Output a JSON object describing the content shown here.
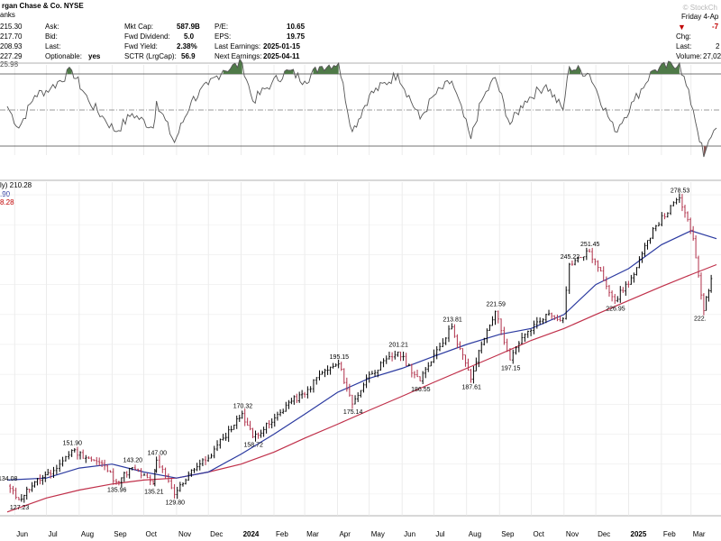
{
  "header": {
    "title": "rgan Chase & Co. NYSE",
    "subtitle": "anks",
    "ask_label": "Ask:",
    "ask_value": "215.30",
    "bid_label": "Bid:",
    "bid_value": "217.70",
    "last_label": "Last:",
    "last_value": "208.93",
    "optionable_label": "Optionable:",
    "optionable_value": "yes",
    "row4_price": "227.29",
    "mktcap_label": "Mkt Cap:",
    "mktcap_value": "587.9B",
    "fwd_div_label": "Fwd Dividend:",
    "fwd_div_value": "5.0",
    "fwd_yield_label": "Fwd Yield:",
    "fwd_yield_value": "2.38%",
    "sctr_label": "SCTR (LrgCap):",
    "sctr_value": "56.9",
    "pe_label": "P/E:",
    "pe_value": "10.65",
    "eps_label": "EPS:",
    "eps_value": "19.75",
    "last_earn_label": "Last Earnings:",
    "last_earn_value": "2025-01-15",
    "next_earn_label": "Next Earnings:",
    "next_earn_value": "2025-04-11",
    "date_text": "Friday 4-Ap",
    "chg_label": "Chg:",
    "chg_value": "-7",
    "last2_label": "Last:",
    "last2_value": "2",
    "volume_label": "Volume:",
    "volume_value": "27,02",
    "watermark": "© StockCh",
    "rsi_value": "25.98"
  },
  "price_legend": {
    "main": "ly) 210.28",
    "ma50": ".90",
    "ma200": "8.28"
  },
  "colors": {
    "price_up": "#000000",
    "price_down": "#b0304a",
    "ma50": "#2b3aa0",
    "ma200": "#c0304a",
    "rsi_fill_over": "#4f7a48",
    "rsi_fill_under": "#8a5a58"
  },
  "chart_data": {
    "type": "line",
    "x_axis_labels": [
      "Jun",
      "Jul",
      "Aug",
      "Sep",
      "Oct",
      "Nov",
      "Dec",
      "2024",
      "Feb",
      "Mar",
      "Apr",
      "May",
      "Jun",
      "Jul",
      "Aug",
      "Sep",
      "Oct",
      "Nov",
      "Dec",
      "2025",
      "Feb",
      "Mar"
    ],
    "ylim": [
      120,
      285
    ],
    "price_annotations": [
      {
        "label": "134.08",
        "value": 134.08,
        "date": "2023-05-25"
      },
      {
        "label": "127.23",
        "value": 127.23,
        "date": "2023-06-05"
      },
      {
        "label": "151.90",
        "value": 151.9,
        "date": "2023-07-25"
      },
      {
        "label": "135.96",
        "value": 135.96,
        "date": "2023-09-05"
      },
      {
        "label": "143.20",
        "value": 143.2,
        "date": "2023-09-20"
      },
      {
        "label": "135.21",
        "value": 135.21,
        "date": "2023-10-10"
      },
      {
        "label": "147.00",
        "value": 147.0,
        "date": "2023-10-13"
      },
      {
        "label": "129.80",
        "value": 129.8,
        "date": "2023-10-30"
      },
      {
        "label": "170.32",
        "value": 170.32,
        "date": "2024-01-02"
      },
      {
        "label": "158.72",
        "value": 158.72,
        "date": "2024-01-12"
      },
      {
        "label": "195.15",
        "value": 195.15,
        "date": "2024-04-02"
      },
      {
        "label": "175.14",
        "value": 175.14,
        "date": "2024-04-15"
      },
      {
        "label": "201.21",
        "value": 201.21,
        "date": "2024-05-28"
      },
      {
        "label": "186.55",
        "value": 186.55,
        "date": "2024-06-18"
      },
      {
        "label": "213.81",
        "value": 213.81,
        "date": "2024-07-18"
      },
      {
        "label": "187.61",
        "value": 187.61,
        "date": "2024-08-05"
      },
      {
        "label": "221.59",
        "value": 221.59,
        "date": "2024-08-28"
      },
      {
        "label": "197.15",
        "value": 197.15,
        "date": "2024-09-11"
      },
      {
        "label": "245.22",
        "value": 245.22,
        "date": "2024-11-06"
      },
      {
        "label": "251.45",
        "value": 251.45,
        "date": "2024-11-25"
      },
      {
        "label": "226.95",
        "value": 226.95,
        "date": "2024-12-19"
      },
      {
        "label": "278.53",
        "value": 278.53,
        "date": "2025-02-18"
      },
      {
        "label": "222.",
        "value": 222.0,
        "date": "2025-03-13"
      }
    ],
    "series": [
      {
        "name": "JPM",
        "values": [
          [
            "2023-05-25",
            134
          ],
          [
            "2023-06-05",
            127.2
          ],
          [
            "2023-06-20",
            136
          ],
          [
            "2023-07-05",
            140
          ],
          [
            "2023-07-25",
            151.9
          ],
          [
            "2023-08-10",
            148
          ],
          [
            "2023-08-25",
            144
          ],
          [
            "2023-09-05",
            136
          ],
          [
            "2023-09-20",
            143.2
          ],
          [
            "2023-10-10",
            135.2
          ],
          [
            "2023-10-13",
            147
          ],
          [
            "2023-10-30",
            129.8
          ],
          [
            "2023-11-15",
            142
          ],
          [
            "2023-12-01",
            148
          ],
          [
            "2023-12-15",
            158
          ],
          [
            "2024-01-02",
            170.3
          ],
          [
            "2024-01-12",
            158.7
          ],
          [
            "2024-01-30",
            166
          ],
          [
            "2024-02-15",
            176
          ],
          [
            "2024-03-01",
            180
          ],
          [
            "2024-03-15",
            190
          ],
          [
            "2024-04-02",
            195.2
          ],
          [
            "2024-04-15",
            175.1
          ],
          [
            "2024-05-01",
            190
          ],
          [
            "2024-05-28",
            201.2
          ],
          [
            "2024-06-18",
            186.6
          ],
          [
            "2024-07-01",
            200
          ],
          [
            "2024-07-18",
            213.8
          ],
          [
            "2024-08-05",
            187.6
          ],
          [
            "2024-08-15",
            205
          ],
          [
            "2024-08-28",
            221.6
          ],
          [
            "2024-09-11",
            197.2
          ],
          [
            "2024-09-25",
            210
          ],
          [
            "2024-10-15",
            220
          ],
          [
            "2024-10-31",
            218
          ],
          [
            "2024-11-06",
            245.2
          ],
          [
            "2024-11-25",
            251.5
          ],
          [
            "2024-12-19",
            227
          ],
          [
            "2025-01-06",
            240
          ],
          [
            "2025-01-24",
            263
          ],
          [
            "2025-02-18",
            278.5
          ],
          [
            "2025-03-03",
            258
          ],
          [
            "2025-03-13",
            222
          ],
          [
            "2025-03-20",
            238
          ]
        ]
      },
      {
        "name": "MA50",
        "values": [
          [
            "2023-05-25",
            137
          ],
          [
            "2023-07-01",
            138
          ],
          [
            "2023-08-01",
            143
          ],
          [
            "2023-09-01",
            145
          ],
          [
            "2023-10-01",
            141
          ],
          [
            "2023-11-01",
            138
          ],
          [
            "2023-12-01",
            141
          ],
          [
            "2024-01-01",
            150
          ],
          [
            "2024-02-01",
            160
          ],
          [
            "2024-03-01",
            170
          ],
          [
            "2024-04-01",
            181
          ],
          [
            "2024-05-01",
            188
          ],
          [
            "2024-06-01",
            193
          ],
          [
            "2024-07-01",
            199
          ],
          [
            "2024-08-01",
            205
          ],
          [
            "2024-09-01",
            210
          ],
          [
            "2024-10-01",
            213
          ],
          [
            "2024-11-01",
            220
          ],
          [
            "2024-12-01",
            235
          ],
          [
            "2025-01-01",
            243
          ],
          [
            "2025-02-01",
            255
          ],
          [
            "2025-03-01",
            262
          ],
          [
            "2025-03-25",
            258
          ]
        ]
      },
      {
        "name": "MA200",
        "values": [
          [
            "2023-05-25",
            121
          ],
          [
            "2023-07-01",
            128
          ],
          [
            "2023-08-01",
            132
          ],
          [
            "2023-09-01",
            135
          ],
          [
            "2023-10-01",
            137
          ],
          [
            "2023-11-01",
            138
          ],
          [
            "2023-12-01",
            141
          ],
          [
            "2024-01-01",
            145
          ],
          [
            "2024-02-01",
            151
          ],
          [
            "2024-03-01",
            158
          ],
          [
            "2024-04-01",
            165
          ],
          [
            "2024-05-01",
            172
          ],
          [
            "2024-06-01",
            179
          ],
          [
            "2024-07-01",
            186
          ],
          [
            "2024-08-01",
            193
          ],
          [
            "2024-09-01",
            200
          ],
          [
            "2024-10-01",
            207
          ],
          [
            "2024-11-01",
            213
          ],
          [
            "2024-12-01",
            220
          ],
          [
            "2025-01-01",
            227
          ],
          [
            "2025-02-01",
            234
          ],
          [
            "2025-03-01",
            240
          ],
          [
            "2025-03-25",
            245
          ]
        ]
      },
      {
        "name": "RSI",
        "values": [
          [
            "2023-05-25",
            52
          ],
          [
            "2023-06-05",
            40
          ],
          [
            "2023-06-20",
            58
          ],
          [
            "2023-07-05",
            62
          ],
          [
            "2023-07-25",
            72
          ],
          [
            "2023-08-10",
            55
          ],
          [
            "2023-08-25",
            45
          ],
          [
            "2023-09-05",
            38
          ],
          [
            "2023-09-20",
            48
          ],
          [
            "2023-10-10",
            40
          ],
          [
            "2023-10-13",
            55
          ],
          [
            "2023-10-30",
            32
          ],
          [
            "2023-11-15",
            55
          ],
          [
            "2023-12-01",
            64
          ],
          [
            "2023-12-15",
            72
          ],
          [
            "2024-01-02",
            76
          ],
          [
            "2024-01-12",
            55
          ],
          [
            "2024-01-30",
            65
          ],
          [
            "2024-02-15",
            72
          ],
          [
            "2024-03-01",
            66
          ],
          [
            "2024-03-15",
            74
          ],
          [
            "2024-04-02",
            76
          ],
          [
            "2024-04-15",
            38
          ],
          [
            "2024-05-01",
            58
          ],
          [
            "2024-05-28",
            70
          ],
          [
            "2024-06-18",
            45
          ],
          [
            "2024-07-01",
            58
          ],
          [
            "2024-07-18",
            66
          ],
          [
            "2024-08-05",
            34
          ],
          [
            "2024-08-15",
            55
          ],
          [
            "2024-08-28",
            68
          ],
          [
            "2024-09-11",
            42
          ],
          [
            "2024-09-25",
            55
          ],
          [
            "2024-10-15",
            64
          ],
          [
            "2024-10-31",
            50
          ],
          [
            "2024-11-06",
            74
          ],
          [
            "2024-11-25",
            70
          ],
          [
            "2024-12-19",
            38
          ],
          [
            "2025-01-06",
            55
          ],
          [
            "2025-01-24",
            72
          ],
          [
            "2025-02-18",
            76
          ],
          [
            "2025-03-03",
            50
          ],
          [
            "2025-03-13",
            24
          ],
          [
            "2025-03-20",
            35
          ],
          [
            "2025-03-25",
            40
          ]
        ]
      }
    ],
    "rsi_levels": [
      70,
      50,
      30
    ],
    "grid": true
  }
}
